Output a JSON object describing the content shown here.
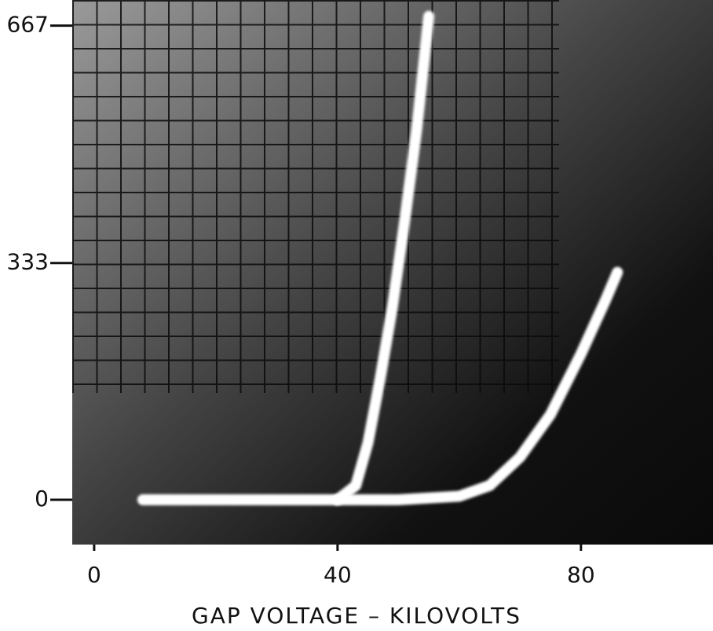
{
  "chart_data": {
    "type": "line",
    "xlabel": "GAP VOLTAGE – KILOVOLTS",
    "xlim": [
      -3.6,
      101.7
    ],
    "ylim": [
      -63,
      703
    ],
    "xticks": [
      0,
      40,
      80
    ],
    "yticks": [
      0,
      333,
      667
    ],
    "series": [
      {
        "color": "#ffffff",
        "x": [
          8,
          20,
          30,
          40,
          43,
          45,
          47,
          49,
          51,
          53,
          55
        ],
        "values": [
          0,
          0,
          0,
          0,
          20,
          80,
          170,
          270,
          390,
          520,
          680
        ]
      },
      {
        "color": "#ffffff",
        "x": [
          40,
          50,
          60,
          65,
          70,
          75,
          80,
          84,
          86
        ],
        "values": [
          0,
          0,
          5,
          20,
          60,
          120,
          205,
          280,
          320
        ]
      }
    ]
  }
}
